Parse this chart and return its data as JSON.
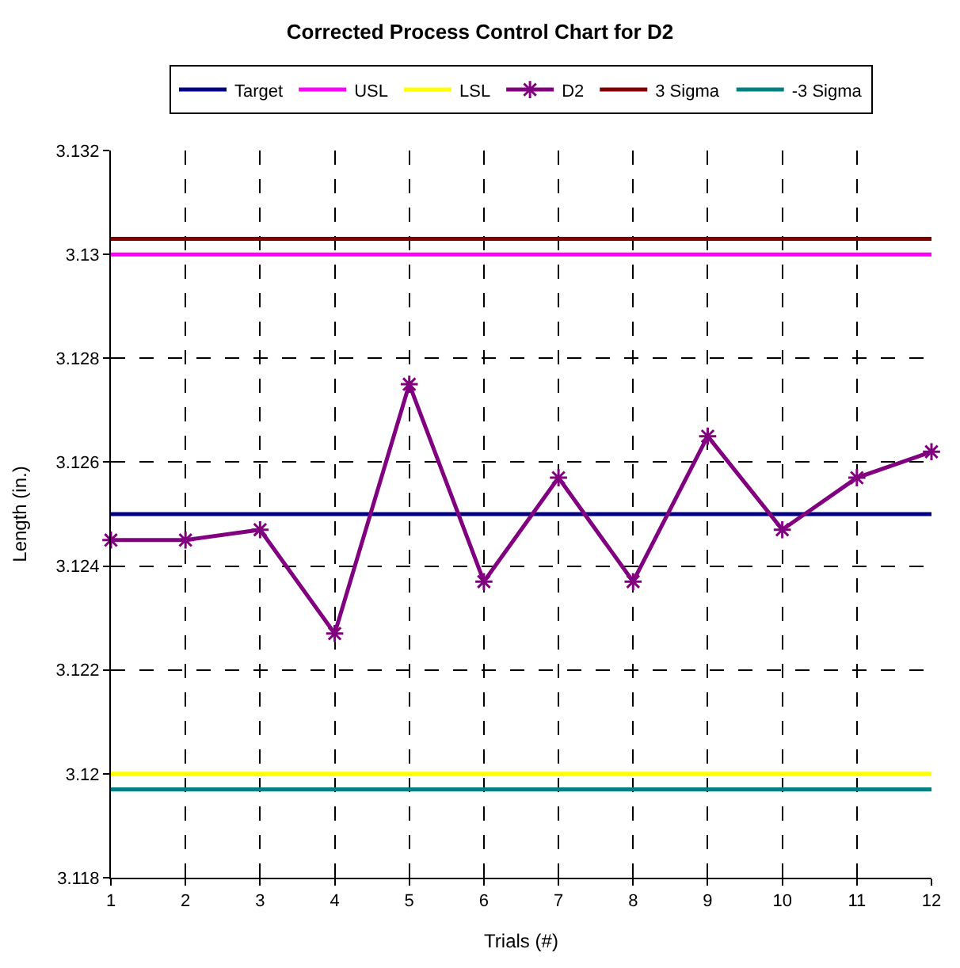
{
  "chart_data": {
    "type": "line",
    "title": "Corrected Process Control Chart for D2",
    "xlabel": "Trials (#)",
    "ylabel": "Length (in.)",
    "x": [
      1,
      2,
      3,
      4,
      5,
      6,
      7,
      8,
      9,
      10,
      11,
      12
    ],
    "series": [
      {
        "name": "Target",
        "color": "#000080",
        "marker": "none",
        "values": [
          3.125,
          3.125,
          3.125,
          3.125,
          3.125,
          3.125,
          3.125,
          3.125,
          3.125,
          3.125,
          3.125,
          3.125
        ]
      },
      {
        "name": "USL",
        "color": "#ff00ff",
        "marker": "none",
        "values": [
          3.13,
          3.13,
          3.13,
          3.13,
          3.13,
          3.13,
          3.13,
          3.13,
          3.13,
          3.13,
          3.13,
          3.13
        ]
      },
      {
        "name": "LSL",
        "color": "#ffff00",
        "marker": "none",
        "values": [
          3.12,
          3.12,
          3.12,
          3.12,
          3.12,
          3.12,
          3.12,
          3.12,
          3.12,
          3.12,
          3.12,
          3.12
        ]
      },
      {
        "name": "D2",
        "color": "#800080",
        "marker": "cross",
        "values": [
          3.1245,
          3.1245,
          3.1247,
          3.1227,
          3.1275,
          3.1237,
          3.1257,
          3.1237,
          3.1265,
          3.1247,
          3.1257,
          3.1262
        ]
      },
      {
        "name": "3 Sigma",
        "color": "#800000",
        "marker": "none",
        "values": [
          3.1303,
          3.1303,
          3.1303,
          3.1303,
          3.1303,
          3.1303,
          3.1303,
          3.1303,
          3.1303,
          3.1303,
          3.1303,
          3.1303
        ]
      },
      {
        "name": "-3 Sigma",
        "color": "#008080",
        "marker": "none",
        "values": [
          3.1197,
          3.1197,
          3.1197,
          3.1197,
          3.1197,
          3.1197,
          3.1197,
          3.1197,
          3.1197,
          3.1197,
          3.1197,
          3.1197
        ]
      }
    ],
    "xlim": [
      1,
      12
    ],
    "xticks": [
      1,
      2,
      3,
      4,
      5,
      6,
      7,
      8,
      9,
      10,
      11,
      12
    ],
    "ylim": [
      3.118,
      3.132
    ],
    "yticks": [
      3.118,
      3.12,
      3.122,
      3.124,
      3.126,
      3.128,
      3.13,
      3.132
    ],
    "grid": true,
    "legend": "top",
    "line_style": "solid"
  }
}
